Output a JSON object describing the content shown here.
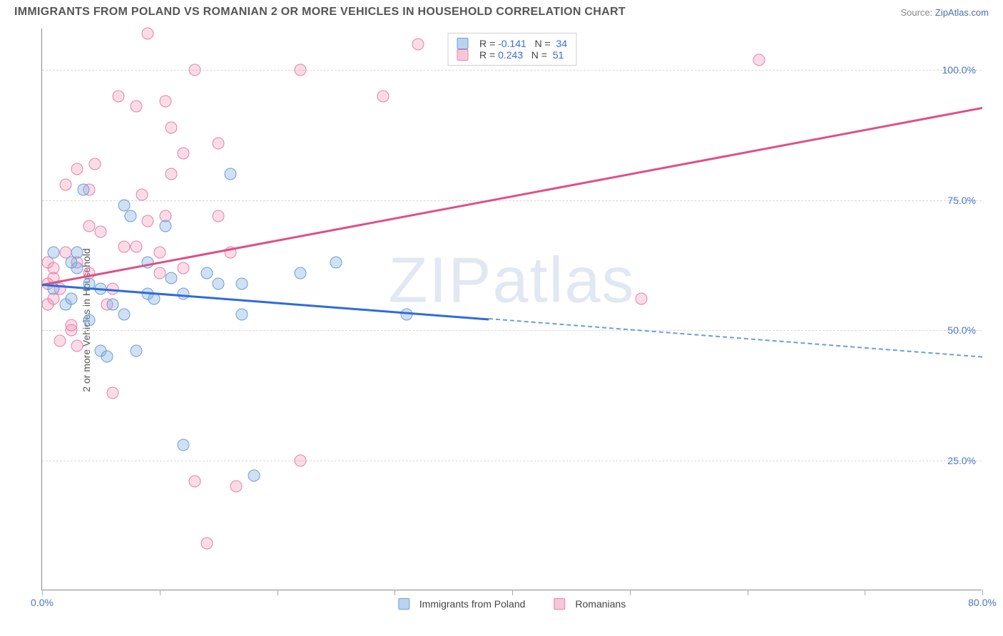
{
  "header": {
    "title": "IMMIGRANTS FROM POLAND VS ROMANIAN 2 OR MORE VEHICLES IN HOUSEHOLD CORRELATION CHART",
    "source_prefix": "Source: ",
    "source_link": "ZipAtlas.com"
  },
  "ylabel": "2 or more Vehicles in Household",
  "watermark": "ZIPatlas",
  "chart": {
    "x_domain": [
      0,
      80
    ],
    "y_domain": [
      0,
      108
    ],
    "y_ticks": [
      {
        "v": 25,
        "label": "25.0%"
      },
      {
        "v": 50,
        "label": "50.0%"
      },
      {
        "v": 75,
        "label": "75.0%"
      },
      {
        "v": 100,
        "label": "100.0%"
      }
    ],
    "x_ticks": [
      {
        "v": 0,
        "label": "0.0%"
      },
      {
        "v": 80,
        "label": "80.0%"
      }
    ],
    "x_tick_marks": [
      0,
      10,
      20,
      30,
      40,
      50,
      60,
      70,
      80
    ],
    "series": {
      "blue": {
        "label": "Immigrants from Poland",
        "color_fill": "rgba(120,168,224,0.35)",
        "color_stroke": "#6a9fd8",
        "R": "-0.141",
        "N": "34",
        "trend": {
          "x1": 0,
          "y1": 59,
          "x2": 80,
          "y2": 45,
          "solid_until_x": 38
        },
        "points": [
          [
            1,
            65
          ],
          [
            1,
            58
          ],
          [
            2,
            55
          ],
          [
            2.5,
            56
          ],
          [
            2.5,
            63
          ],
          [
            3,
            65
          ],
          [
            3,
            62
          ],
          [
            3.5,
            77
          ],
          [
            4,
            59
          ],
          [
            4,
            52
          ],
          [
            5,
            58
          ],
          [
            5,
            46
          ],
          [
            5.5,
            45
          ],
          [
            6,
            55
          ],
          [
            7,
            53
          ],
          [
            7,
            74
          ],
          [
            7.5,
            72
          ],
          [
            8,
            46
          ],
          [
            9,
            57
          ],
          [
            9,
            63
          ],
          [
            9.5,
            56
          ],
          [
            10.5,
            70
          ],
          [
            11,
            60
          ],
          [
            12,
            28
          ],
          [
            12,
            57
          ],
          [
            14,
            61
          ],
          [
            15,
            59
          ],
          [
            16,
            80
          ],
          [
            17,
            59
          ],
          [
            17,
            53
          ],
          [
            18,
            22
          ],
          [
            22,
            61
          ],
          [
            25,
            63
          ],
          [
            31,
            53
          ]
        ]
      },
      "pink": {
        "label": "Romanians",
        "color_fill": "rgba(238,130,170,0.28)",
        "color_stroke": "#e581a8",
        "R": "0.243",
        "N": "51",
        "trend": {
          "x1": 0,
          "y1": 59,
          "x2": 80,
          "y2": 93
        },
        "points": [
          [
            0.5,
            63
          ],
          [
            0.5,
            59
          ],
          [
            0.5,
            55
          ],
          [
            1,
            62
          ],
          [
            1,
            60
          ],
          [
            1,
            56
          ],
          [
            1.5,
            48
          ],
          [
            1.5,
            58
          ],
          [
            2,
            78
          ],
          [
            2,
            65
          ],
          [
            2.5,
            51
          ],
          [
            2.5,
            50
          ],
          [
            3,
            81
          ],
          [
            3,
            63
          ],
          [
            3,
            47
          ],
          [
            4,
            77
          ],
          [
            4,
            70
          ],
          [
            4,
            61
          ],
          [
            4.5,
            82
          ],
          [
            5,
            69
          ],
          [
            5.5,
            55
          ],
          [
            6,
            58
          ],
          [
            6,
            38
          ],
          [
            6.5,
            95
          ],
          [
            7,
            66
          ],
          [
            8,
            93
          ],
          [
            8,
            66
          ],
          [
            8.5,
            76
          ],
          [
            9,
            107
          ],
          [
            9,
            71
          ],
          [
            10,
            65
          ],
          [
            10,
            61
          ],
          [
            10.5,
            94
          ],
          [
            10.5,
            72
          ],
          [
            11,
            89
          ],
          [
            11,
            80
          ],
          [
            12,
            84
          ],
          [
            12,
            62
          ],
          [
            13,
            100
          ],
          [
            13,
            21
          ],
          [
            14,
            9
          ],
          [
            15,
            86
          ],
          [
            15,
            72
          ],
          [
            16,
            65
          ],
          [
            16.5,
            20
          ],
          [
            22,
            100
          ],
          [
            22,
            25
          ],
          [
            29,
            95
          ],
          [
            32,
            105
          ],
          [
            51,
            56
          ],
          [
            61,
            102
          ]
        ]
      }
    }
  },
  "legend_top": {
    "rows": [
      {
        "swatch": "blue",
        "R_label": "R = ",
        "R": "-0.141",
        "N_label": "N = ",
        "N": "34"
      },
      {
        "swatch": "pink",
        "R_label": "R = ",
        "R": "0.243",
        "N_label": "N = ",
        "N": "51"
      }
    ]
  }
}
